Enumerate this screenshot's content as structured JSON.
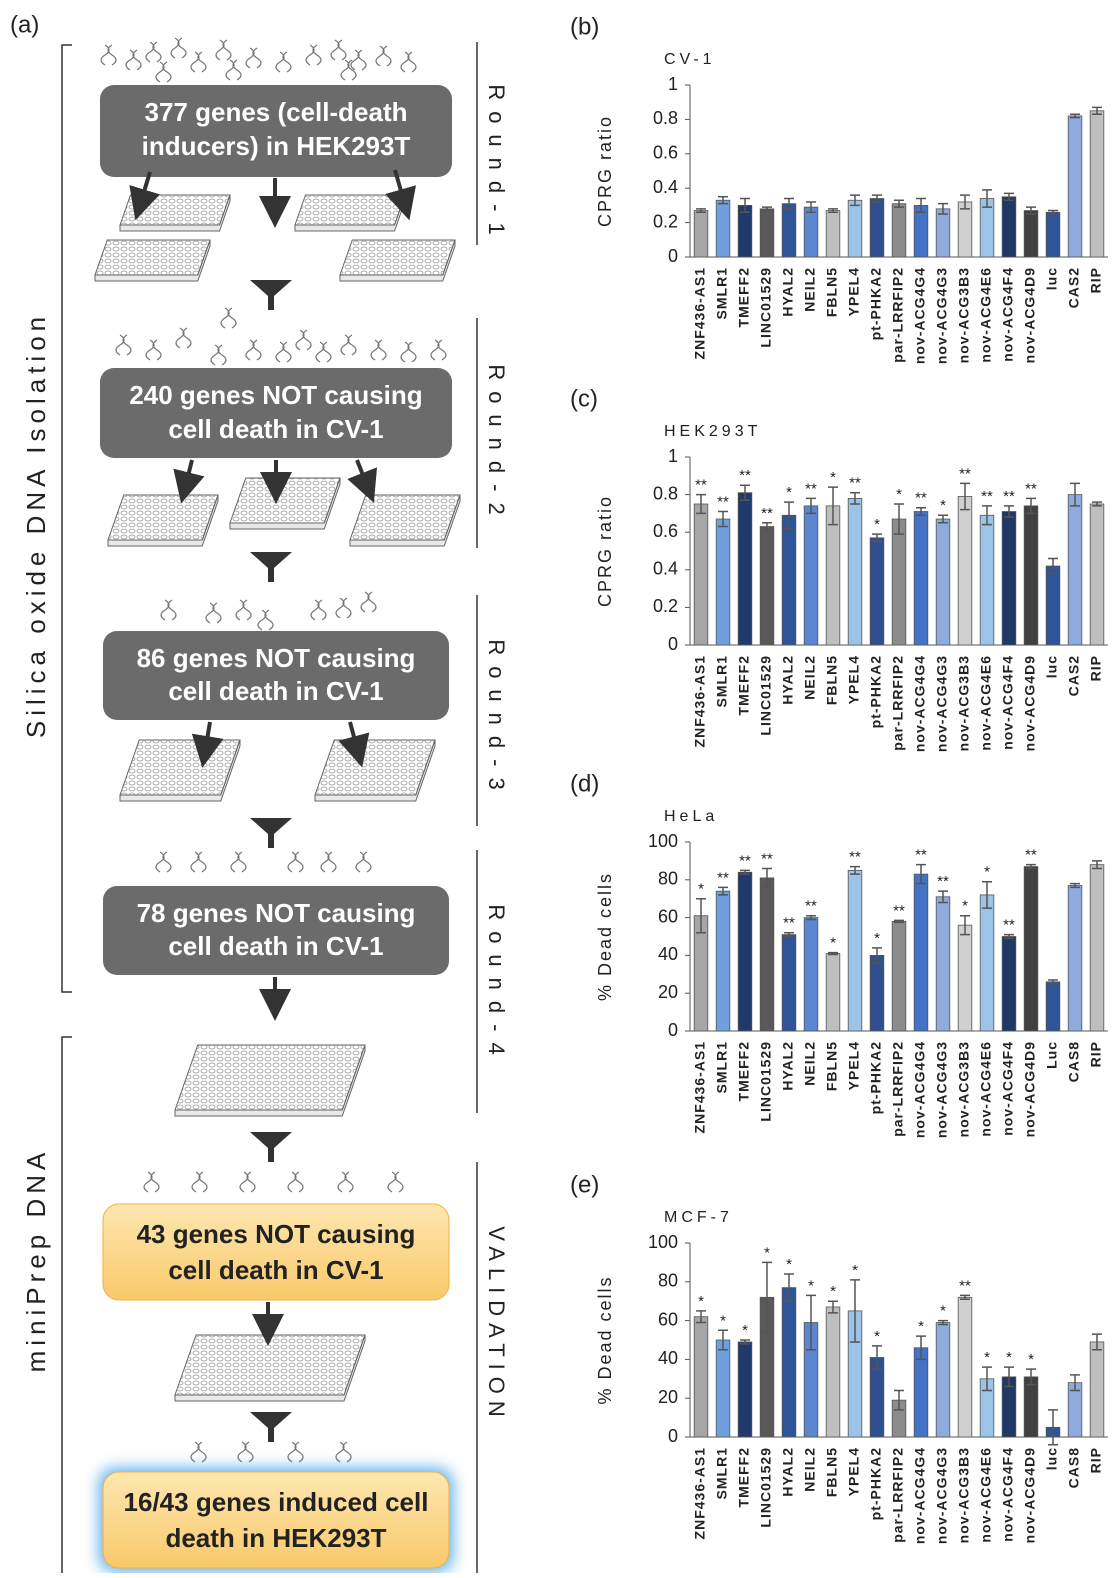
{
  "diagram": {
    "label": "(a)",
    "sections": [
      "Silica oxide DNA Isolation",
      "miniPrep DNA"
    ],
    "rounds": [
      "Round-1",
      "Round-2",
      "Round-3",
      "Round-4",
      "VALIDATION"
    ],
    "boxes": [
      {
        "lines": [
          "377 genes (cell-death",
          "inducers) in HEK293T"
        ]
      },
      {
        "lines": [
          "240 genes NOT causing",
          "cell death in CV-1"
        ]
      },
      {
        "lines": [
          "86 genes NOT causing",
          "cell death in CV-1"
        ]
      },
      {
        "lines": [
          "78 genes NOT causing",
          "cell death in CV-1"
        ]
      },
      {
        "lines": [
          "43 genes NOT causing",
          "cell death in CV-1"
        ]
      },
      {
        "lines": [
          "16/43 genes induced cell",
          "death in HEK293T"
        ]
      }
    ]
  },
  "chart_data": [
    {
      "type": "bar",
      "panel": "(b)",
      "title": "CV-1",
      "y_label": "CPRG ratio",
      "categories": [
        "ZNF436-AS1",
        "SMLR1",
        "TMEFF2",
        "LINC01529",
        "HYAL2",
        "NEIL2",
        "FBLN5",
        "YPEL4",
        "pt-PHKA2",
        "par-LRRFIP2",
        "nov-ACG4G4",
        "nov-ACG4G3",
        "nov-ACG3B3",
        "nov-ACG4E6",
        "nov-ACG4F4",
        "nov-ACG4D9",
        "luc",
        "CAS2",
        "RIP"
      ],
      "values": [
        0.27,
        0.33,
        0.3,
        0.28,
        0.31,
        0.29,
        0.27,
        0.33,
        0.34,
        0.31,
        0.3,
        0.28,
        0.32,
        0.34,
        0.35,
        0.27,
        0.26,
        0.82,
        0.85
      ],
      "errors": [
        0.01,
        0.02,
        0.04,
        0.01,
        0.03,
        0.03,
        0.01,
        0.03,
        0.02,
        0.02,
        0.04,
        0.03,
        0.04,
        0.05,
        0.02,
        0.02,
        0.01,
        0.01,
        0.02
      ],
      "colors": [
        "#a6a6a6",
        "#6f9fdc",
        "#1f3a6b",
        "#595959",
        "#2e5597",
        "#5b87d0",
        "#bfbfbf",
        "#9dc3e6",
        "#2f4f8f",
        "#8c8c8c",
        "#4472c4",
        "#8faadc",
        "#d0d0d0",
        "#9dc3e6",
        "#203864",
        "#404040",
        "#2e5597",
        "#8faadc",
        "#bfbfbf"
      ],
      "ylim": [
        0,
        1
      ],
      "yticks": [
        0,
        0.2,
        0.4,
        0.6,
        0.8,
        1
      ]
    },
    {
      "type": "bar",
      "panel": "(c)",
      "title": "HEK293T",
      "y_label": "CPRG ratio",
      "categories": [
        "ZNF436-AS1",
        "SMLR1",
        "TMEFF2",
        "LINC01529",
        "HYAL2",
        "NEIL2",
        "FBLN5",
        "YPEL4",
        "pt-PHKA2",
        "par-LRRFIP2",
        "nov-ACG4G4",
        "nov-ACG4G3",
        "nov-ACG3B3",
        "nov-ACG4E6",
        "nov-ACG4F4",
        "nov-ACG4D9",
        "luc",
        "CAS2",
        "RIP"
      ],
      "values": [
        0.75,
        0.67,
        0.81,
        0.63,
        0.69,
        0.74,
        0.74,
        0.78,
        0.57,
        0.67,
        0.71,
        0.67,
        0.79,
        0.69,
        0.71,
        0.74,
        0.42,
        0.8,
        0.75
      ],
      "errors": [
        0.05,
        0.04,
        0.04,
        0.02,
        0.07,
        0.04,
        0.1,
        0.03,
        0.02,
        0.08,
        0.02,
        0.02,
        0.07,
        0.05,
        0.03,
        0.04,
        0.04,
        0.06,
        0.01
      ],
      "annotations": [
        "**",
        "**",
        "**",
        "**",
        "*",
        "**",
        "*",
        "**",
        "*",
        "*",
        "**",
        "*",
        "**",
        "**",
        "**",
        "**",
        null,
        null,
        null
      ],
      "colors": [
        "#a6a6a6",
        "#6f9fdc",
        "#1f3a6b",
        "#595959",
        "#2e5597",
        "#5b87d0",
        "#bfbfbf",
        "#9dc3e6",
        "#2f4f8f",
        "#8c8c8c",
        "#4472c4",
        "#8faadc",
        "#d0d0d0",
        "#9dc3e6",
        "#203864",
        "#404040",
        "#2e5597",
        "#8faadc",
        "#bfbfbf"
      ],
      "ylim": [
        0,
        1
      ],
      "yticks": [
        0,
        0.2,
        0.4,
        0.6,
        0.8,
        1
      ]
    },
    {
      "type": "bar",
      "panel": "(d)",
      "title": "HeLa",
      "y_label": "% Dead cells",
      "categories": [
        "ZNF436-AS1",
        "SMLR1",
        "TMEFF2",
        "LINC01529",
        "HYAL2",
        "NEIL2",
        "FBLN5",
        "YPEL4",
        "pt-PHKA2",
        "par-LRRFIP2",
        "nov-ACG4G4",
        "nov-ACG4G3",
        "nov-ACG3B3",
        "nov-ACG4E6",
        "nov-ACG4F4",
        "nov-ACG4D9",
        "Luc",
        "CAS8",
        "RIP"
      ],
      "values": [
        61,
        74,
        84,
        81,
        51,
        60,
        41,
        85,
        40,
        58,
        83,
        71,
        56,
        72,
        50,
        87,
        26,
        77,
        88
      ],
      "errors": [
        9,
        2,
        1,
        5,
        1,
        1,
        0.5,
        2,
        4,
        0.5,
        5,
        3,
        5,
        7,
        1,
        1,
        1,
        1,
        2
      ],
      "annotations": [
        "*",
        "**",
        "**",
        "**",
        "**",
        "**",
        "*",
        "**",
        "*",
        "**",
        "**",
        "**",
        "*",
        "*",
        "**",
        "**",
        null,
        null,
        null
      ],
      "colors": [
        "#a6a6a6",
        "#6f9fdc",
        "#1f3a6b",
        "#595959",
        "#2e5597",
        "#5b87d0",
        "#bfbfbf",
        "#9dc3e6",
        "#2f4f8f",
        "#8c8c8c",
        "#4472c4",
        "#8faadc",
        "#d0d0d0",
        "#9dc3e6",
        "#203864",
        "#404040",
        "#2e5597",
        "#8faadc",
        "#bfbfbf"
      ],
      "ylim": [
        0,
        100
      ],
      "yticks": [
        0,
        20,
        40,
        60,
        80,
        100
      ]
    },
    {
      "type": "bar",
      "panel": "(e)",
      "title": "MCF-7",
      "y_label": "% Dead cells",
      "categories": [
        "ZNF436-AS1",
        "SMLR1",
        "TMEFF2",
        "LINC01529",
        "HYAL2",
        "NEIL2",
        "FBLN5",
        "YPEL4",
        "pt-PHKA2",
        "par-LRRFIP2",
        "nov-ACG4G4",
        "nov-ACG4G3",
        "nov-ACG3B3",
        "nov-ACG4E6",
        "nov-ACG4F4",
        "nov-ACG4D9",
        "luc",
        "CAS8",
        "RIP"
      ],
      "values": [
        62,
        50,
        49,
        72,
        77,
        59,
        67,
        65,
        41,
        19,
        46,
        59,
        72,
        30,
        31,
        31,
        5,
        28,
        49
      ],
      "errors": [
        3,
        5,
        1,
        18,
        7,
        14,
        3,
        16,
        6,
        5,
        6,
        1,
        1,
        6,
        5,
        4,
        9,
        4,
        4
      ],
      "annotations": [
        "*",
        "*",
        "*",
        "*",
        "*",
        "*",
        "*",
        "*",
        "*",
        null,
        "*",
        "*",
        "**",
        "*",
        "*",
        "*",
        null,
        null,
        null
      ],
      "colors": [
        "#a6a6a6",
        "#6f9fdc",
        "#1f3a6b",
        "#595959",
        "#2e5597",
        "#5b87d0",
        "#bfbfbf",
        "#9dc3e6",
        "#2f4f8f",
        "#8c8c8c",
        "#4472c4",
        "#8faadc",
        "#d0d0d0",
        "#9dc3e6",
        "#203864",
        "#404040",
        "#2e5597",
        "#8faadc",
        "#bfbfbf"
      ],
      "ylim": [
        0,
        100
      ],
      "yticks": [
        0,
        20,
        40,
        60,
        80,
        100
      ]
    }
  ]
}
